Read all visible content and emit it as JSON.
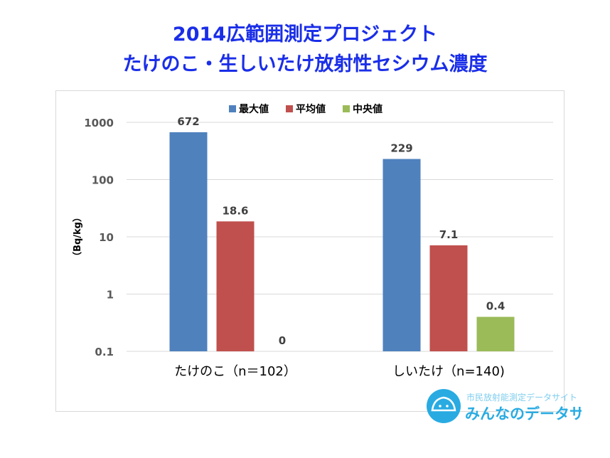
{
  "title": {
    "line1": "2014広範囲測定プロジェクト",
    "line2": "たけのこ・生しいたけ放射性セシウム濃度"
  },
  "chart_data": {
    "type": "bar",
    "title": "2014広範囲測定プロジェクト たけのこ・生しいたけ放射性セシウム濃度",
    "ylabel": "（Bq/kg）",
    "yscale": "log",
    "ylim": [
      0.1,
      1000
    ],
    "yticks": [
      "0.1",
      "1",
      "10",
      "100",
      "1000"
    ],
    "grid": true,
    "legend": "top",
    "categories": [
      "たけのこ（n＝102）",
      "しいたけ（n=140)"
    ],
    "series": [
      {
        "name": "最大値",
        "color": "#4f81bd",
        "values": [
          672,
          229
        ],
        "labels": [
          "672",
          "229"
        ]
      },
      {
        "name": "平均値",
        "color": "#c0504d",
        "values": [
          18.6,
          7.1
        ],
        "labels": [
          "18.6",
          "7.1"
        ]
      },
      {
        "name": "中央値",
        "color": "#9bbb59",
        "values": [
          0,
          0.4
        ],
        "labels": [
          "0",
          "0.4"
        ]
      }
    ]
  },
  "logo": {
    "subtitle": "市民放射能測定データサイト",
    "name": "みんなのデータサイト",
    "color": "#29abe2"
  }
}
